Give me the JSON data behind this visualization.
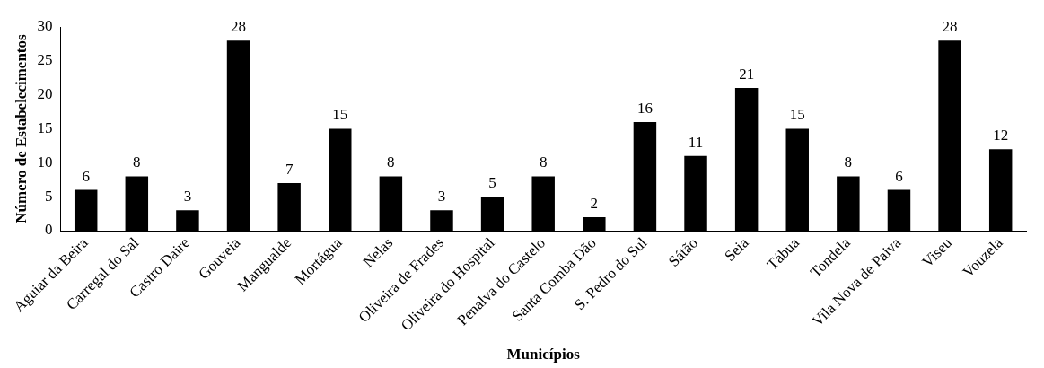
{
  "chart_data": {
    "type": "bar",
    "xlabel": "Municípios",
    "ylabel": "Número de Estabelecimentos",
    "categories": [
      "Aguiar da Beira",
      "Carregal do Sal",
      "Castro Daire",
      "Gouveia",
      "Mangualde",
      "Mortágua",
      "Nelas",
      "Oliveira de Frades",
      "Oliveira do Hospital",
      "Penalva do Castelo",
      "Santa Comba Dão",
      "S. Pedro do Sul",
      "Sátão",
      "Seia",
      "Tábua",
      "Tondela",
      "Vila Nova de Paiva",
      "Viseu",
      "Vouzela"
    ],
    "values": [
      6,
      8,
      3,
      28,
      7,
      15,
      8,
      3,
      5,
      8,
      2,
      16,
      11,
      21,
      15,
      8,
      6,
      28,
      12
    ],
    "color": "#000000",
    "ylim": [
      0,
      30
    ],
    "yticks": [
      0,
      5,
      10,
      15,
      20,
      25,
      30
    ],
    "grid": false,
    "legend": false,
    "data_labels": true
  }
}
